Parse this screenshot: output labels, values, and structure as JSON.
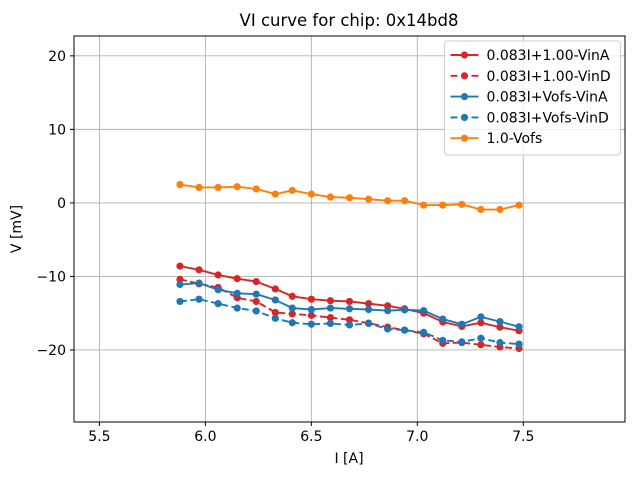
{
  "figure": {
    "background": "#ffffff",
    "axes_background": "#ffffff",
    "spine_color": "#000000",
    "grid_color": "#b0b0b0",
    "legend_border_color": "#cccccc"
  },
  "chart_data": {
    "type": "line",
    "title": "VI curve for chip: 0x14bd8",
    "xlabel": "I [A]",
    "ylabel": "V [mV]",
    "xlim": [
      5.38,
      7.98
    ],
    "ylim": [
      -29.8,
      22.7
    ],
    "xticks": [
      5.5,
      6.0,
      6.5,
      7.0,
      7.5
    ],
    "yticks": [
      20,
      10,
      0,
      -10,
      -20
    ],
    "grid": true,
    "legend_position": "upper right",
    "x": [
      5.88,
      5.97,
      6.06,
      6.15,
      6.24,
      6.33,
      6.41,
      6.5,
      6.59,
      6.68,
      6.77,
      6.86,
      6.94,
      7.03,
      7.12,
      7.21,
      7.3,
      7.39,
      7.48
    ],
    "series": [
      {
        "name": "0.083I+1.00-VinA",
        "color": "#d62728",
        "style": "solid",
        "marker": "circle",
        "values": [
          -8.6,
          -9.1,
          -9.8,
          -10.3,
          -10.7,
          -11.7,
          -12.7,
          -13.1,
          -13.3,
          -13.4,
          -13.7,
          -14.0,
          -14.4,
          -15.0,
          -16.2,
          -16.8,
          -16.3,
          -16.9,
          -17.4
        ]
      },
      {
        "name": "0.083I+1.00-VinD",
        "color": "#d62728",
        "style": "dashed",
        "marker": "circle",
        "values": [
          -10.4,
          -11.0,
          -11.5,
          -12.9,
          -13.4,
          -14.9,
          -15.1,
          -15.3,
          -15.6,
          -15.9,
          -16.35,
          -16.9,
          -17.3,
          -17.8,
          -19.1,
          -19.0,
          -19.3,
          -19.6,
          -19.8
        ]
      },
      {
        "name": "0.083I+Vofs-VinA",
        "color": "#1f77b4",
        "style": "solid",
        "marker": "circle",
        "values": [
          -11.1,
          -10.9,
          -11.8,
          -12.3,
          -12.4,
          -13.2,
          -14.3,
          -14.5,
          -14.3,
          -14.4,
          -14.5,
          -14.65,
          -14.55,
          -14.65,
          -15.8,
          -16.5,
          -15.5,
          -16.15,
          -16.85
        ]
      },
      {
        "name": "0.083I+Vofs-VinD",
        "color": "#1f77b4",
        "style": "dashed",
        "marker": "circle",
        "values": [
          -13.4,
          -13.1,
          -13.7,
          -14.3,
          -14.7,
          -15.7,
          -16.3,
          -16.5,
          -16.4,
          -16.6,
          -16.4,
          -17.15,
          -17.3,
          -17.6,
          -18.7,
          -18.9,
          -18.4,
          -19.0,
          -19.2
        ]
      },
      {
        "name": "1.0-Vofs",
        "color": "#ff7f0e",
        "style": "solid",
        "marker": "circle",
        "values": [
          2.5,
          2.1,
          2.1,
          2.2,
          1.9,
          1.2,
          1.7,
          1.2,
          0.8,
          0.7,
          0.5,
          0.3,
          0.3,
          -0.3,
          -0.3,
          -0.2,
          -0.9,
          -0.9,
          -0.3
        ]
      }
    ]
  }
}
